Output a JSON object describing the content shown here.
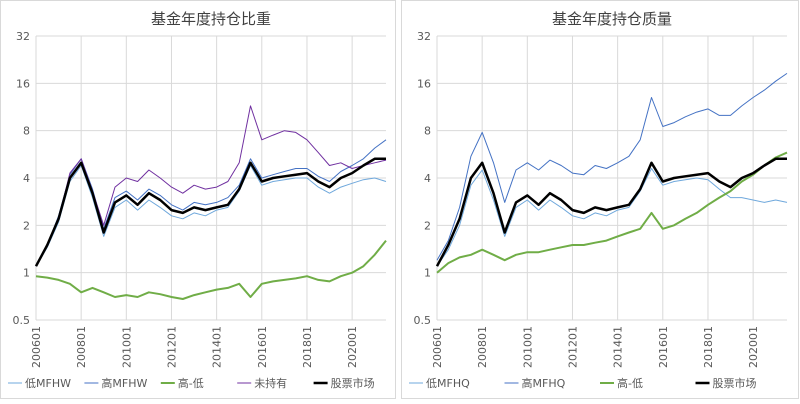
{
  "chart_data": [
    {
      "type": "line",
      "title": "基金年度持仓比重",
      "log_scale": true,
      "grid": true,
      "legend": "bottom",
      "categories": [
        "200601",
        null,
        null,
        null,
        "200801",
        null,
        null,
        null,
        "201001",
        null,
        null,
        null,
        "201201",
        null,
        null,
        null,
        "201401",
        null,
        null,
        null,
        "201601",
        null,
        null,
        null,
        "201801",
        null,
        null,
        null,
        "202001",
        null,
        null,
        null
      ],
      "ylim": [
        0.5,
        32
      ],
      "yticks": [
        0.5,
        1,
        2,
        4,
        8,
        16,
        32
      ],
      "series": [
        {
          "name": "低MFHW",
          "color": "#6fa8dc",
          "width": 1,
          "values": [
            1.1,
            1.45,
            2.1,
            3.8,
            4.8,
            3.0,
            1.7,
            2.6,
            2.9,
            2.5,
            2.9,
            2.6,
            2.3,
            2.2,
            2.4,
            2.3,
            2.5,
            2.6,
            3.3,
            4.8,
            3.6,
            3.8,
            3.9,
            4.0,
            4.0,
            3.5,
            3.2,
            3.5,
            3.7,
            3.9,
            4.0,
            3.8
          ]
        },
        {
          "name": "高MFHW",
          "color": "#4472c4",
          "width": 1,
          "values": [
            1.1,
            1.5,
            2.3,
            4.2,
            5.3,
            3.4,
            1.9,
            3.0,
            3.3,
            2.9,
            3.4,
            3.1,
            2.7,
            2.5,
            2.8,
            2.7,
            2.8,
            3.0,
            3.6,
            5.3,
            4.0,
            4.2,
            4.4,
            4.6,
            4.6,
            4.1,
            3.8,
            4.4,
            4.8,
            5.3,
            6.2,
            7.0
          ]
        },
        {
          "name": "高-低",
          "color": "#70ad47",
          "width": 2,
          "values": [
            0.95,
            0.93,
            0.9,
            0.85,
            0.75,
            0.8,
            0.75,
            0.7,
            0.72,
            0.7,
            0.75,
            0.73,
            0.7,
            0.68,
            0.72,
            0.75,
            0.78,
            0.8,
            0.85,
            0.7,
            0.85,
            0.88,
            0.9,
            0.92,
            0.95,
            0.9,
            0.88,
            0.95,
            1.0,
            1.1,
            1.3,
            1.6
          ]
        },
        {
          "name": "未持有",
          "color": "#7030a0",
          "width": 1,
          "values": [
            1.1,
            1.5,
            2.2,
            4.3,
            5.3,
            3.3,
            2.0,
            3.5,
            4.0,
            3.8,
            4.5,
            4.0,
            3.5,
            3.2,
            3.6,
            3.4,
            3.5,
            3.8,
            5.0,
            11.5,
            7.0,
            7.5,
            8.0,
            7.8,
            7.0,
            5.8,
            4.8,
            5.0,
            4.6,
            4.8,
            5.0,
            5.2
          ]
        },
        {
          "name": "股票市场",
          "color": "#000000",
          "width": 2.5,
          "values": [
            1.1,
            1.5,
            2.2,
            4.0,
            5.0,
            3.2,
            1.8,
            2.8,
            3.1,
            2.7,
            3.2,
            2.9,
            2.5,
            2.4,
            2.6,
            2.5,
            2.6,
            2.7,
            3.4,
            5.0,
            3.8,
            4.0,
            4.1,
            4.2,
            4.3,
            3.8,
            3.5,
            4.0,
            4.3,
            4.8,
            5.3,
            5.3
          ]
        }
      ]
    },
    {
      "type": "line",
      "title": "基金年度持仓质量",
      "log_scale": true,
      "grid": true,
      "legend": "bottom",
      "categories": [
        "200601",
        null,
        null,
        null,
        "200801",
        null,
        null,
        null,
        "201001",
        null,
        null,
        null,
        "201201",
        null,
        null,
        null,
        "201401",
        null,
        null,
        null,
        "201601",
        null,
        null,
        null,
        "201801",
        null,
        null,
        null,
        "202001",
        null,
        null,
        null
      ],
      "ylim": [
        0.5,
        32
      ],
      "yticks": [
        0.5,
        1,
        2,
        4,
        8,
        16,
        32
      ],
      "series": [
        {
          "name": "低MFHQ",
          "color": "#6fa8dc",
          "width": 1,
          "values": [
            1.1,
            1.4,
            2.0,
            3.6,
            4.5,
            2.9,
            1.7,
            2.6,
            2.9,
            2.5,
            2.9,
            2.6,
            2.3,
            2.2,
            2.4,
            2.3,
            2.5,
            2.6,
            3.3,
            4.6,
            3.6,
            3.8,
            3.9,
            4.0,
            3.9,
            3.4,
            3.0,
            3.0,
            2.9,
            2.8,
            2.9,
            2.8
          ]
        },
        {
          "name": "高MFHQ",
          "color": "#4472c4",
          "width": 1,
          "values": [
            1.2,
            1.6,
            2.6,
            5.5,
            7.8,
            5.0,
            2.8,
            4.5,
            5.0,
            4.5,
            5.2,
            4.8,
            4.3,
            4.2,
            4.8,
            4.6,
            5.0,
            5.5,
            7.0,
            13.0,
            8.5,
            9.0,
            9.8,
            10.5,
            11.0,
            10.0,
            10.0,
            11.5,
            13.0,
            14.5,
            16.5,
            18.5
          ]
        },
        {
          "name": "高-低",
          "color": "#70ad47",
          "width": 2,
          "values": [
            1.0,
            1.15,
            1.25,
            1.3,
            1.4,
            1.3,
            1.2,
            1.3,
            1.35,
            1.35,
            1.4,
            1.45,
            1.5,
            1.5,
            1.55,
            1.6,
            1.7,
            1.8,
            1.9,
            2.4,
            1.9,
            2.0,
            2.2,
            2.4,
            2.7,
            3.0,
            3.3,
            3.8,
            4.2,
            4.8,
            5.4,
            5.8
          ]
        },
        {
          "name": "股票市场",
          "color": "#000000",
          "width": 2.5,
          "values": [
            1.1,
            1.5,
            2.2,
            4.0,
            5.0,
            3.2,
            1.8,
            2.8,
            3.1,
            2.7,
            3.2,
            2.9,
            2.5,
            2.4,
            2.6,
            2.5,
            2.6,
            2.7,
            3.4,
            5.0,
            3.8,
            4.0,
            4.1,
            4.2,
            4.3,
            3.8,
            3.5,
            4.0,
            4.3,
            4.8,
            5.3,
            5.3
          ]
        }
      ]
    }
  ]
}
